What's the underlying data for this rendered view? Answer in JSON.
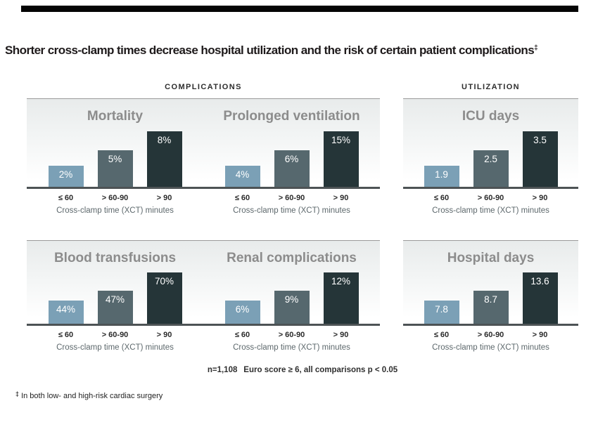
{
  "page": {
    "title": "Shorter cross-clamp times decrease hospital utilization and the risk of certain patient complications",
    "title_footnote_marker": "‡",
    "footer_stats": "n=1,108  Euro score ≥ 6, all comparisons p < 0.05",
    "footnote_marker": "‡",
    "footnote_text": "In both low- and high-risk cardiac surgery"
  },
  "sections": {
    "complications": "COMPLICATIONS",
    "utilization": "UTILIZATION"
  },
  "colors": {
    "bar_low": "#7ba0b6",
    "bar_mid": "#56686e",
    "bar_high": "#253538",
    "axis_line": "#4d5355",
    "section_rule": "#9b9b9b",
    "chart_title": "#8c8c8c",
    "top_rule": "#050505",
    "panel_gradient_top": "#e8ebeb"
  },
  "chart_data": [
    {
      "type": "bar",
      "section": "COMPLICATIONS",
      "title": "Mortality",
      "categories": [
        "≤ 60",
        "> 60-90",
        "> 90"
      ],
      "values": [
        2,
        5,
        8
      ],
      "labels": [
        "2%",
        "5%",
        "8%"
      ],
      "xlabel": "Cross-clamp time (XCT) minutes"
    },
    {
      "type": "bar",
      "section": "COMPLICATIONS",
      "title": "Prolonged ventilation",
      "categories": [
        "≤ 60",
        "> 60-90",
        "> 90"
      ],
      "values": [
        4,
        6,
        15
      ],
      "labels": [
        "4%",
        "6%",
        "15%"
      ],
      "xlabel": "Cross-clamp time (XCT) minutes"
    },
    {
      "type": "bar",
      "section": "UTILIZATION",
      "title": "ICU days",
      "categories": [
        "≤ 60",
        "> 60-90",
        "> 90"
      ],
      "values": [
        1.9,
        2.5,
        3.5
      ],
      "labels": [
        "1.9",
        "2.5",
        "3.5"
      ],
      "xlabel": "Cross-clamp time (XCT) minutes"
    },
    {
      "type": "bar",
      "section": "COMPLICATIONS",
      "title": "Blood transfusions",
      "categories": [
        "≤ 60",
        "> 60-90",
        "> 90"
      ],
      "values": [
        44,
        47,
        70
      ],
      "labels": [
        "44%",
        "47%",
        "70%"
      ],
      "xlabel": "Cross-clamp time (XCT) minutes"
    },
    {
      "type": "bar",
      "section": "COMPLICATIONS",
      "title": "Renal complications",
      "categories": [
        "≤ 60",
        "> 60-90",
        "> 90"
      ],
      "values": [
        6,
        9,
        12
      ],
      "labels": [
        "6%",
        "9%",
        "12%"
      ],
      "xlabel": "Cross-clamp time (XCT) minutes"
    },
    {
      "type": "bar",
      "section": "UTILIZATION",
      "title": "Hospital days",
      "categories": [
        "≤ 60",
        "> 60-90",
        "> 90"
      ],
      "values": [
        7.8,
        8.7,
        13.6
      ],
      "labels": [
        "7.8",
        "8.7",
        "13.6"
      ],
      "xlabel": "Cross-clamp time (XCT) minutes"
    }
  ]
}
